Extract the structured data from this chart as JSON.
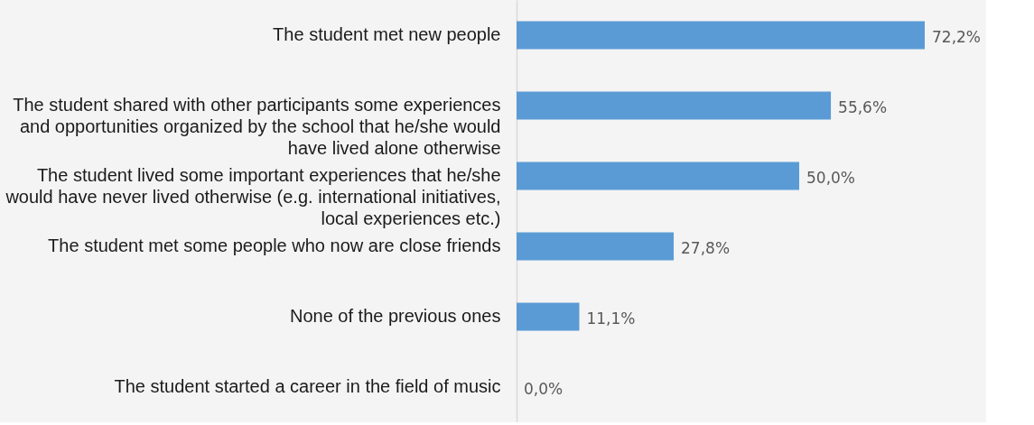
{
  "chart_data": {
    "type": "bar",
    "orientation": "horizontal",
    "categories": [
      "The student met new people",
      "The student shared with other participants some experiences\nand opportunities organized by the school that he/she would\nhave lived alone otherwise",
      "The student lived some important experiences that he/she\nwould have never lived otherwise (e.g. international initiatives,\nlocal experiences etc.)",
      "The student met some people who now are close friends",
      "None of the previous ones",
      "The student started a career in the field of music"
    ],
    "values": [
      72.2,
      55.6,
      50.0,
      27.8,
      11.1,
      0.0
    ],
    "value_labels": [
      "72,2%",
      "55,6%",
      "50,0%",
      "27,8%",
      "11,1%",
      "0,0%"
    ],
    "color": "#5b9bd5"
  }
}
